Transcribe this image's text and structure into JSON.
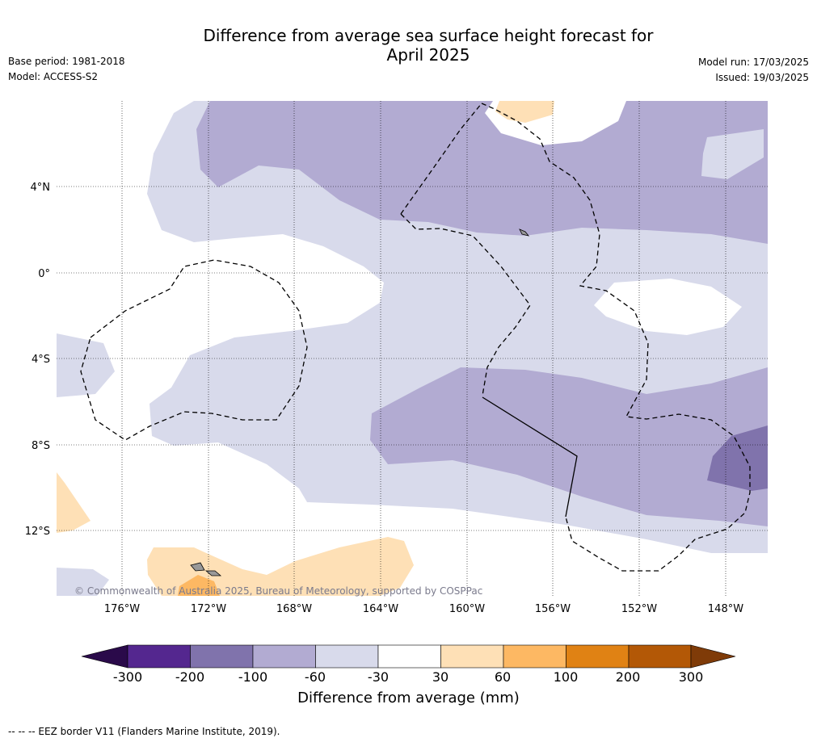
{
  "header": {
    "title_line1": "Difference from average sea surface height forecast for",
    "title_line2": "April 2025",
    "base_period": "Base period: 1981-2018",
    "model": "Model: ACCESS-S2",
    "model_run": "Model run: 17/03/2025",
    "issued": "Issued: 19/03/2025"
  },
  "map": {
    "lat_labels": [
      "4°N",
      "0°",
      "4°S",
      "8°S",
      "12°S"
    ],
    "lon_labels": [
      "176°W",
      "172°W",
      "168°W",
      "164°W",
      "160°W",
      "156°W",
      "152°W",
      "148°W"
    ],
    "copyright": "© Commonwealth of Australia 2025, Bureau of Meteorology, supported by COSPPac",
    "colors": {
      "neg_300": "#2a0a4a",
      "neg_200": "#54278f",
      "neg_100": "#8073ac",
      "neg_60": "#b2abd2",
      "neg_30": "#d8daeb",
      "neutral": "#ffffff",
      "pos_30": "#fee0b6",
      "pos_60": "#fdb863",
      "pos_100": "#e08214",
      "pos_200": "#b35806",
      "pos_300": "#7f3b08"
    }
  },
  "colorbar": {
    "ticks": [
      "-300",
      "-200",
      "-100",
      "-60",
      "-30",
      "30",
      "60",
      "100",
      "200",
      "300"
    ],
    "title": "Difference from average (mm)"
  },
  "footer": {
    "legend_note": "-- -- -- EEZ border V11 (Flanders Marine Institute, 2019)."
  }
}
